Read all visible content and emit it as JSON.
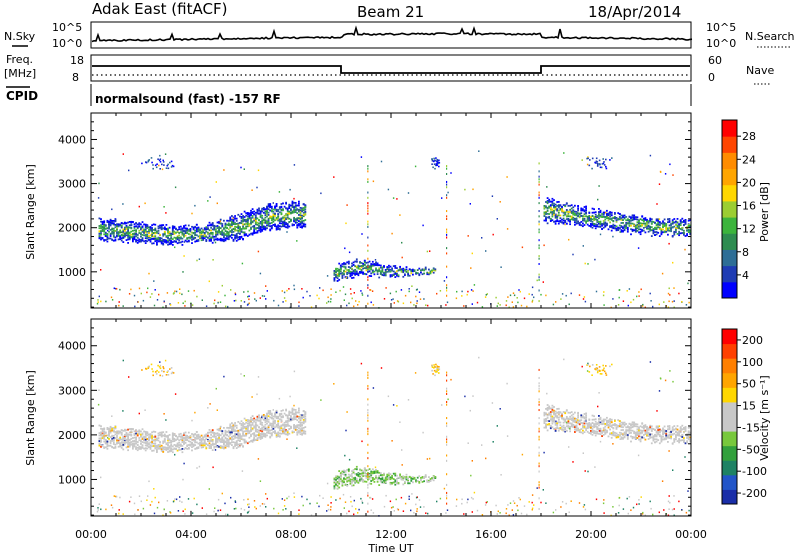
{
  "header": {
    "station": "Adak East (fitACF)",
    "beam": "Beam 21",
    "date": "18/Apr/2014"
  },
  "strips": {
    "nsky_label": "N.Sky",
    "nsky_ticks": [
      "10^5",
      "10^0"
    ],
    "nsearch_label": "N.Search",
    "nsearch_ticks": [
      "10^5",
      "10^0"
    ],
    "freq_label_1": "Freq.",
    "freq_label_2": "[MHz]",
    "freq_ticks": [
      "18",
      "8"
    ],
    "nave_label": "Nave",
    "nave_ticks": [
      "60",
      "0"
    ],
    "cpid_label": "CPID",
    "cpid_text": "normalsound (fast) -157 RF"
  },
  "axes": {
    "ylabel": "Slant Range [km]",
    "xlabel": "Time UT",
    "x_ticks": [
      "00:00",
      "04:00",
      "08:00",
      "12:00",
      "16:00",
      "20:00",
      "00:00"
    ],
    "y_ticks": [
      "1000",
      "2000",
      "3000",
      "4000"
    ]
  },
  "colorbars": {
    "power": {
      "title": "Power [dB]",
      "ticks": [
        "4",
        "8",
        "12",
        "16",
        "20",
        "24",
        "28"
      ],
      "colors": [
        "#0000ff",
        "#1f3cb4",
        "#2e6e96",
        "#2e8c50",
        "#3cb43c",
        "#9bcd32",
        "#ffd700",
        "#ffa500",
        "#ff8c00",
        "#ff4500",
        "#ff0000"
      ]
    },
    "velocity": {
      "title": "Velocity [m s⁻¹]",
      "ticks": [
        "200",
        "100",
        "50",
        "15",
        "-15",
        "-50",
        "-100",
        "-200"
      ],
      "colors": [
        "#1a2ea8",
        "#2255c8",
        "#1e8264",
        "#32a03c",
        "#78c83c",
        "#c8c8c8",
        "#c8c8c8",
        "#ffd700",
        "#ffa500",
        "#ff7f00",
        "#ff4000",
        "#ff0000"
      ]
    }
  },
  "chart_data": [
    {
      "type": "heatmap",
      "panel": "power",
      "xlabel": "Time UT",
      "ylabel": "Slant Range [km]",
      "xlim": [
        0,
        24
      ],
      "ylim": [
        180,
        4600
      ],
      "x_unit": "hours UT",
      "colorbar": "Power [dB]",
      "colorbar_range": [
        0,
        30
      ],
      "regions": [
        {
          "t_start": 0.3,
          "t_end": 8.6,
          "ranges_km": [
            [
              2200,
              1750
            ],
            [
              2150,
              1700
            ],
            [
              2050,
              1650
            ],
            [
              2050,
              1700
            ],
            [
              2300,
              1750
            ],
            [
              2550,
              2000
            ],
            [
              2600,
              2050
            ]
          ]
        },
        {
          "t_start": 9.7,
          "t_end": 13.8,
          "ranges_km": [
            [
              1150,
              800
            ],
            [
              1300,
              950
            ],
            [
              1150,
              900
            ],
            [
              1100,
              950
            ],
            [
              1100,
              950
            ]
          ]
        },
        {
          "t_start": 18.1,
          "t_end": 24.0,
          "ranges_km": [
            [
              2700,
              2150
            ],
            [
              2500,
              2100
            ],
            [
              2400,
              2000
            ],
            [
              2300,
              1900
            ],
            [
              2200,
              1850
            ],
            [
              2200,
              1850
            ]
          ]
        }
      ]
    },
    {
      "type": "heatmap",
      "panel": "velocity",
      "xlabel": "Time UT",
      "ylabel": "Slant Range [km]",
      "xlim": [
        0,
        24
      ],
      "ylim": [
        180,
        4600
      ],
      "x_unit": "hours UT",
      "colorbar": "Velocity [m s⁻¹]",
      "colorbar_range": [
        -250,
        250
      ]
    }
  ]
}
